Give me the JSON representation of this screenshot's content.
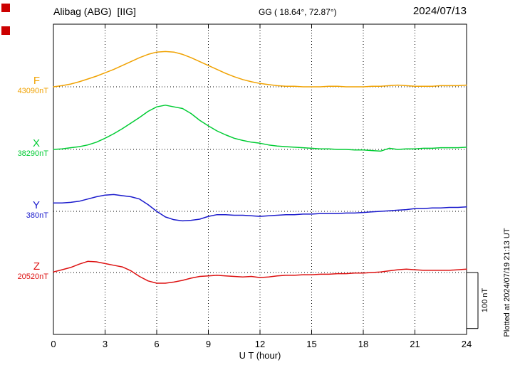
{
  "header": {
    "station_title": "Alibag (ABG)  [IIG]",
    "gg_coords": "GG ( 18.64°, 72.87°)",
    "date": "2024/07/13"
  },
  "xaxis": {
    "label": "U T (hour)"
  },
  "scale_bar": {
    "label": "100 nT"
  },
  "plot_note": "Plotted at 2024/07/19 21:13 UT",
  "markers": {
    "color": "#cc0000"
  },
  "chart_data": {
    "type": "line",
    "title": "Alibag (ABG) [IIG] magnetogram — 2024/07/13",
    "xlabel": "U T (hour)",
    "x_range": [
      0,
      24
    ],
    "x_ticks": [
      0,
      3,
      6,
      9,
      12,
      15,
      18,
      21,
      24
    ],
    "x_step_hours": 0.5,
    "units": "nT offset from each component baseline",
    "scale_bar_nT": 100,
    "grid": "dotted vertical at 3-hour ticks, dotted horizontal baselines",
    "series": [
      {
        "name": "F",
        "baseline_label": "43090nT",
        "color": "#f0a202",
        "values": [
          0,
          2,
          5,
          9,
          14,
          19,
          25,
          31,
          38,
          45,
          52,
          58,
          62,
          63,
          62,
          58,
          52,
          45,
          38,
          31,
          24,
          18,
          13,
          9,
          6,
          4,
          2,
          1,
          1,
          0,
          0,
          0,
          1,
          1,
          0,
          0,
          0,
          1,
          1,
          2,
          3,
          2,
          1,
          1,
          1,
          2,
          2,
          2,
          3
        ]
      },
      {
        "name": "X",
        "baseline_label": "38290nT",
        "color": "#00cc33",
        "values": [
          0,
          1,
          3,
          5,
          8,
          13,
          20,
          28,
          37,
          47,
          57,
          68,
          76,
          79,
          76,
          73,
          64,
          52,
          42,
          33,
          26,
          20,
          16,
          13,
          11,
          8,
          6,
          5,
          4,
          3,
          2,
          1,
          1,
          0,
          0,
          -1,
          -1,
          -2,
          -3,
          2,
          0,
          1,
          1,
          2,
          2,
          3,
          3,
          3,
          4
        ]
      },
      {
        "name": "Y",
        "baseline_label": "380nT",
        "color": "#1a1acc",
        "values": [
          15,
          15,
          16,
          18,
          22,
          26,
          29,
          30,
          28,
          26,
          22,
          12,
          0,
          -10,
          -15,
          -17,
          -16,
          -14,
          -9,
          -6,
          -6,
          -7,
          -7,
          -8,
          -9,
          -8,
          -7,
          -6,
          -6,
          -5,
          -5,
          -4,
          -4,
          -4,
          -3,
          -3,
          -2,
          -1,
          0,
          1,
          2,
          3,
          5,
          5,
          6,
          6,
          7,
          7,
          8
        ]
      },
      {
        "name": "Z",
        "baseline_label": "20520nT",
        "color": "#dd1111",
        "values": [
          1,
          5,
          9,
          15,
          20,
          19,
          16,
          13,
          10,
          3,
          -7,
          -15,
          -19,
          -19,
          -17,
          -14,
          -10,
          -7,
          -6,
          -5,
          -6,
          -7,
          -8,
          -7,
          -9,
          -8,
          -6,
          -5,
          -5,
          -4,
          -4,
          -3,
          -3,
          -2,
          -2,
          -1,
          -1,
          0,
          1,
          3,
          5,
          6,
          5,
          4,
          4,
          4,
          4,
          5,
          6
        ]
      }
    ]
  }
}
